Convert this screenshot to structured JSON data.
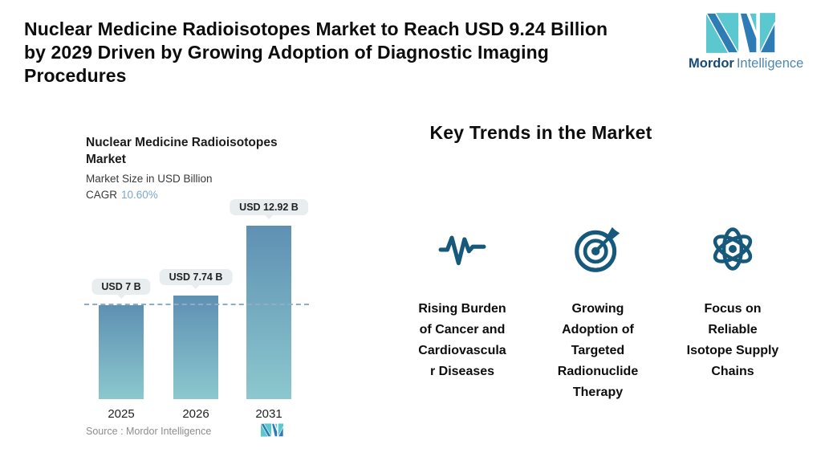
{
  "page": {
    "title": "Nuclear Medicine Radioisotopes Market to Reach USD 9.24 Billion\nby 2029 Driven by Growing Adoption of Diagnostic Imaging\nProcedures"
  },
  "logo": {
    "brand_bold": "Mordor",
    "brand_light": "Intelligence"
  },
  "chart": {
    "title": "Nuclear Medicine Radioisotopes\nMarket",
    "subtitle": "Market Size in USD Billion",
    "cagr_label": "CAGR",
    "cagr_value": "10.60%",
    "source": "Source :  Mordor Intelligence"
  },
  "chart_data": {
    "type": "bar",
    "title": "Nuclear Medicine Radioisotopes Market",
    "ylabel": "Market Size in USD Billion",
    "cagr": "10.60%",
    "categories": [
      "2025",
      "2026",
      "2031"
    ],
    "values": [
      7,
      7.74,
      12.92
    ],
    "value_labels": [
      "USD 7 B",
      "USD 7.74 B",
      "USD 12.92 B"
    ],
    "unit": "USD Billion",
    "ylim": [
      0,
      12.92
    ],
    "reference_line": 7,
    "grid": false,
    "legend": false
  },
  "trends": {
    "heading": "Key Trends in the Market",
    "items": [
      {
        "icon": "pulse-icon",
        "label": "Rising Burden\nof Cancer and\nCardiovascula\nr Diseases"
      },
      {
        "icon": "target-arrow-icon",
        "label": "Growing\nAdoption of\nTargeted\nRadionuclide\nTherapy"
      },
      {
        "icon": "atom-icon",
        "label": "Focus on\nReliable\nIsotope Supply\nChains"
      }
    ]
  },
  "colors": {
    "accent_teal": "#5BC7CE",
    "accent_blue": "#2E7CB5",
    "icon_dark_teal": "#17597B",
    "cagr_blue": "#7BA7CB",
    "bar_top": "#5E90B3",
    "bar_bottom": "#8CC8CE",
    "pill_bg": "#E8EEF0",
    "dashed_line": "#8FAEC4",
    "source_gray": "#8D8D8D",
    "brand_dark": "#174A78",
    "brand_light": "#4E87B2"
  }
}
